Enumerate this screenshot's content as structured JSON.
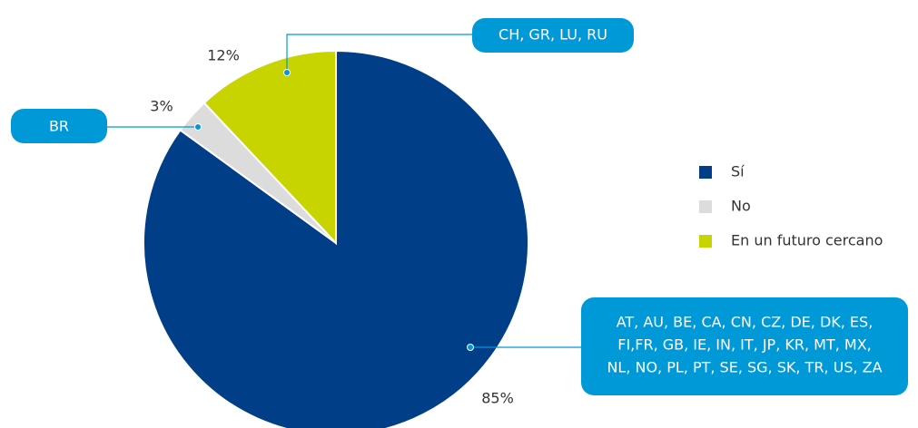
{
  "chart_data": {
    "type": "pie",
    "categories": [
      "Sí",
      "No",
      "En un futuro cercano"
    ],
    "values": [
      85,
      3,
      12
    ],
    "value_labels": [
      "85%",
      "3%",
      "12%"
    ],
    "colors": [
      "#003f87",
      "#dcdcdc",
      "#c8d400"
    ],
    "annotations": [
      [
        "AT, AU, BE, CA, CN, CZ, DE, DK, ES,",
        "FI,FR, GB, IE, IN, IT, JP, KR, MT, MX,",
        "NL, NO, PL, PT, SE, SG, SK, TR, US, ZA"
      ],
      [
        "BR"
      ],
      [
        "CH, GR, LU, RU"
      ]
    ],
    "legend": "right"
  }
}
